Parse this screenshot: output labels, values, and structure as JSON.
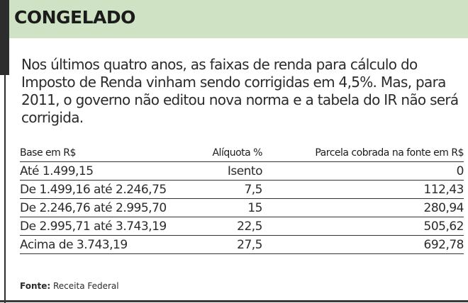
{
  "header": {
    "title": "CONGELADO"
  },
  "intro": "Nos últimos quatro anos, as faixas de renda para cálculo do Imposto de Renda vinham sendo corrigidas em 4,5%. Mas, para 2011, o governo não editou nova norma e a tabela do IR não será corrigida.",
  "table": {
    "headers": [
      "Base em R$",
      "Alíquota %",
      "Parcela cobrada na fonte em R$"
    ],
    "rows": [
      [
        "Até 1.499,15",
        "Isento",
        "0"
      ],
      [
        "De 1.499,16 até 2.246,75",
        "7,5",
        "112,43"
      ],
      [
        "De 2.246,76 até 2.995,70",
        "15",
        "280,94"
      ],
      [
        "De 2.995,71 até 3.743,19",
        "22,5",
        "505,62"
      ],
      [
        "Acima de 3.743,19",
        "27,5",
        "692,78"
      ]
    ]
  },
  "source": {
    "label": "Fonte:",
    "text": "Receita Federal"
  }
}
